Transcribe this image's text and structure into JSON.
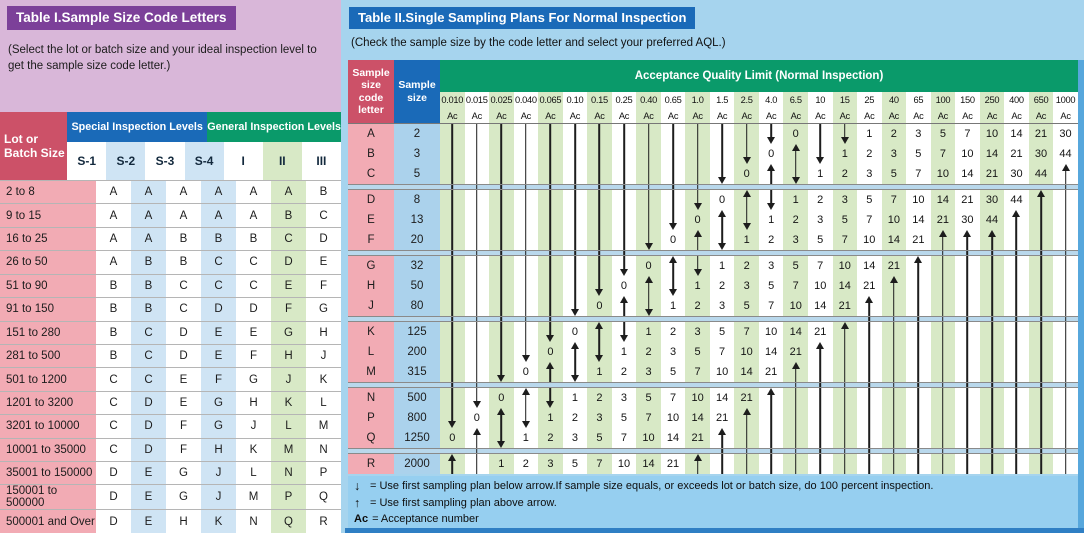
{
  "left_table": {
    "title": "Table I.Sample Size Code Letters",
    "subtitle": "(Select the lot or batch size and your ideal inspection level to get the sample size code letter.)",
    "headers": {
      "lot": "Lot or Batch Size",
      "special": "Special Inspection Levels",
      "general": "General Inspection Levels",
      "sub": [
        "S-1",
        "S-2",
        "S-3",
        "S-4",
        "I",
        "II",
        "III"
      ]
    },
    "rows": [
      [
        "2 to 8",
        "A",
        "A",
        "A",
        "A",
        "A",
        "A",
        "B"
      ],
      [
        "9 to 15",
        "A",
        "A",
        "A",
        "A",
        "A",
        "B",
        "C"
      ],
      [
        "16 to 25",
        "A",
        "A",
        "B",
        "B",
        "B",
        "C",
        "D"
      ],
      [
        "26 to 50",
        "A",
        "B",
        "B",
        "C",
        "C",
        "D",
        "E"
      ],
      [
        "51 to 90",
        "B",
        "B",
        "C",
        "C",
        "C",
        "E",
        "F"
      ],
      [
        "91 to 150",
        "B",
        "B",
        "C",
        "D",
        "D",
        "F",
        "G"
      ],
      [
        "151 to 280",
        "B",
        "C",
        "D",
        "E",
        "E",
        "G",
        "H"
      ],
      [
        "281 to 500",
        "B",
        "C",
        "D",
        "E",
        "F",
        "H",
        "J"
      ],
      [
        "501 to 1200",
        "C",
        "C",
        "E",
        "F",
        "G",
        "J",
        "K"
      ],
      [
        "1201 to 3200",
        "C",
        "D",
        "E",
        "G",
        "H",
        "K",
        "L"
      ],
      [
        "3201 to 10000",
        "C",
        "D",
        "F",
        "G",
        "J",
        "L",
        "M"
      ],
      [
        "10001 to 35000",
        "C",
        "D",
        "F",
        "H",
        "K",
        "M",
        "N"
      ],
      [
        "35001 to 150000",
        "D",
        "E",
        "G",
        "J",
        "L",
        "N",
        "P"
      ],
      [
        "150001 to 500000",
        "D",
        "E",
        "G",
        "J",
        "M",
        "P",
        "Q"
      ],
      [
        "500001 and Over",
        "D",
        "E",
        "H",
        "K",
        "N",
        "Q",
        "R"
      ]
    ]
  },
  "right_table": {
    "title": "Table II.Single Sampling Plans For Normal Inspection",
    "subtitle": "(Check the sample size by the code letter and select your preferred AQL.)",
    "headers": {
      "code_letter": "Sample size code letter",
      "sample_size": "Sample size",
      "aql_title": "Acceptance Quality Limit (Normal Inspection)",
      "ac_label": "Ac"
    },
    "aql_values": [
      "0.010",
      "0.015",
      "0.025",
      "0.040",
      "0.065",
      "0.10",
      "0.15",
      "0.25",
      "0.40",
      "0.65",
      "1.0",
      "1.5",
      "2.5",
      "4.0",
      "6.5",
      "10",
      "15",
      "25",
      "40",
      "65",
      "100",
      "150",
      "250",
      "400",
      "650",
      "1000"
    ],
    "cell_legend": {
      "|": "down-arrow shaft",
      "v": "down-arrow head",
      "^": "up-arrow head",
      "!": "up-arrow shaft"
    },
    "blocks": [
      {
        "rows": [
          {
            "letter": "A",
            "size": "2",
            "cells": [
              "|",
              "|",
              "|",
              "|",
              "|",
              "|",
              "|",
              "|",
              "|",
              "|",
              "|",
              "|",
              "|",
              "v",
              "0",
              "|",
              "v",
              "1",
              "2",
              "3",
              "5",
              "7",
              "10",
              "14",
              "21",
              "30"
            ]
          },
          {
            "letter": "B",
            "size": "3",
            "cells": [
              "|",
              "|",
              "|",
              "|",
              "|",
              "|",
              "|",
              "|",
              "|",
              "|",
              "|",
              "|",
              "v",
              "0",
              "^",
              "v",
              "1",
              "2",
              "3",
              "5",
              "7",
              "10",
              "14",
              "21",
              "30",
              "44"
            ]
          },
          {
            "letter": "C",
            "size": "5",
            "cells": [
              "|",
              "|",
              "|",
              "|",
              "|",
              "|",
              "|",
              "|",
              "|",
              "|",
              "|",
              "v",
              "0",
              "^",
              "v",
              "1",
              "2",
              "3",
              "5",
              "7",
              "10",
              "14",
              "21",
              "30",
              "44",
              "^"
            ]
          }
        ]
      },
      {
        "rows": [
          {
            "letter": "D",
            "size": "8",
            "cells": [
              "|",
              "|",
              "|",
              "|",
              "|",
              "|",
              "|",
              "|",
              "|",
              "|",
              "v",
              "0",
              "^",
              "v",
              "1",
              "2",
              "3",
              "5",
              "7",
              "10",
              "14",
              "21",
              "30",
              "44",
              "^",
              "!"
            ]
          },
          {
            "letter": "E",
            "size": "13",
            "cells": [
              "|",
              "|",
              "|",
              "|",
              "|",
              "|",
              "|",
              "|",
              "|",
              "v",
              "0",
              "^",
              "v",
              "1",
              "2",
              "3",
              "5",
              "7",
              "10",
              "14",
              "21",
              "30",
              "44",
              "^",
              "!",
              "!"
            ]
          },
          {
            "letter": "F",
            "size": "20",
            "cells": [
              "|",
              "|",
              "|",
              "|",
              "|",
              "|",
              "|",
              "|",
              "v",
              "0",
              "^",
              "v",
              "1",
              "2",
              "3",
              "5",
              "7",
              "10",
              "14",
              "21",
              "^",
              "^",
              "^",
              "!",
              "!",
              "!"
            ]
          }
        ]
      },
      {
        "rows": [
          {
            "letter": "G",
            "size": "32",
            "cells": [
              "|",
              "|",
              "|",
              "|",
              "|",
              "|",
              "|",
              "v",
              "0",
              "^",
              "v",
              "1",
              "2",
              "3",
              "5",
              "7",
              "10",
              "14",
              "21",
              "^",
              "!",
              "!",
              "!",
              "!",
              "!",
              "!"
            ]
          },
          {
            "letter": "H",
            "size": "50",
            "cells": [
              "|",
              "|",
              "|",
              "|",
              "|",
              "|",
              "v",
              "0",
              "^",
              "v",
              "1",
              "2",
              "3",
              "5",
              "7",
              "10",
              "14",
              "21",
              "^",
              "!",
              "!",
              "!",
              "!",
              "!",
              "!",
              "!"
            ]
          },
          {
            "letter": "J",
            "size": "80",
            "cells": [
              "|",
              "|",
              "|",
              "|",
              "|",
              "v",
              "0",
              "^",
              "v",
              "1",
              "2",
              "3",
              "5",
              "7",
              "10",
              "14",
              "21",
              "^",
              "!",
              "!",
              "!",
              "!",
              "!",
              "!",
              "!",
              "!"
            ]
          }
        ]
      },
      {
        "rows": [
          {
            "letter": "K",
            "size": "125",
            "cells": [
              "|",
              "|",
              "|",
              "|",
              "v",
              "0",
              "^",
              "v",
              "1",
              "2",
              "3",
              "5",
              "7",
              "10",
              "14",
              "21",
              "^",
              "!",
              "!",
              "!",
              "!",
              "!",
              "!",
              "!",
              "!",
              "!"
            ]
          },
          {
            "letter": "L",
            "size": "200",
            "cells": [
              "|",
              "|",
              "|",
              "v",
              "0",
              "^",
              "v",
              "1",
              "2",
              "3",
              "5",
              "7",
              "10",
              "14",
              "21",
              "^",
              "!",
              "!",
              "!",
              "!",
              "!",
              "!",
              "!",
              "!",
              "!",
              "!"
            ]
          },
          {
            "letter": "M",
            "size": "315",
            "cells": [
              "|",
              "|",
              "v",
              "0",
              "^",
              "v",
              "1",
              "2",
              "3",
              "5",
              "7",
              "10",
              "14",
              "21",
              "^",
              "!",
              "!",
              "!",
              "!",
              "!",
              "!",
              "!",
              "!",
              "!",
              "!",
              "!"
            ]
          }
        ]
      },
      {
        "rows": [
          {
            "letter": "N",
            "size": "500",
            "cells": [
              "|",
              "v",
              "0",
              "^",
              "v",
              "1",
              "2",
              "3",
              "5",
              "7",
              "10",
              "14",
              "21",
              "^",
              "!",
              "!",
              "!",
              "!",
              "!",
              "!",
              "!",
              "!",
              "!",
              "!",
              "!",
              "!"
            ]
          },
          {
            "letter": "P",
            "size": "800",
            "cells": [
              "v",
              "0",
              "^",
              "v",
              "1",
              "2",
              "3",
              "5",
              "7",
              "10",
              "14",
              "21",
              "^",
              "!",
              "!",
              "!",
              "!",
              "!",
              "!",
              "!",
              "!",
              "!",
              "!",
              "!",
              "!",
              "!"
            ]
          },
          {
            "letter": "Q",
            "size": "1250",
            "cells": [
              "0",
              "^",
              "v",
              "1",
              "2",
              "3",
              "5",
              "7",
              "10",
              "14",
              "21",
              "^",
              "!",
              "!",
              "!",
              "!",
              "!",
              "!",
              "!",
              "!",
              "!",
              "!",
              "!",
              "!",
              "!",
              "!"
            ]
          }
        ]
      },
      {
        "rows": [
          {
            "letter": "R",
            "size": "2000",
            "cells": [
              "^",
              "!",
              "1",
              "2",
              "3",
              "5",
              "7",
              "10",
              "14",
              "21",
              "^",
              "!",
              "!",
              "!",
              "!",
              "!",
              "!",
              "!",
              "!",
              "!",
              "!",
              "!",
              "!",
              "!",
              "!",
              "!"
            ]
          }
        ]
      }
    ],
    "gap_shafts": [
      [
        0,
        1,
        2,
        3,
        4,
        5,
        6,
        7,
        8,
        9,
        10,
        25
      ],
      [
        0,
        1,
        2,
        3,
        4,
        5,
        6,
        7,
        20,
        21,
        22,
        23,
        24,
        25
      ],
      [
        0,
        1,
        2,
        3,
        4,
        17,
        18,
        19,
        20,
        21,
        22,
        23,
        24,
        25
      ],
      [
        0,
        1,
        14,
        15,
        16,
        17,
        18,
        19,
        20,
        21,
        22,
        23,
        24,
        25
      ],
      [
        1,
        11,
        12,
        13,
        14,
        15,
        16,
        17,
        18,
        19,
        20,
        21,
        22,
        23,
        24,
        25
      ]
    ],
    "footnotes": [
      {
        "symbol": "↓",
        "text": "= Use first sampling plan below arrow.If sample size equals, or exceeds lot or batch size, do 100 percent inspection."
      },
      {
        "symbol": "↑",
        "text": "= Use first sampling plan above arrow."
      },
      {
        "symbol": "Ac",
        "text": "= Acceptance number"
      }
    ]
  },
  "colors": {
    "purple_title": "#7c4099",
    "lavender": "#d9b7d9",
    "red_header": "#cc5168",
    "pink_cell": "#f2abb4",
    "blue_header": "#1a6ab8",
    "light_blue_cell": "#cfe4f4",
    "green_header": "#0a9a6a",
    "light_green_cell": "#d8e9c6",
    "panel_blue": "#a6d4ee",
    "size_cell_blue": "#abd2ec",
    "gap_blue": "#b9d8ec",
    "notes_blue": "#96cff0",
    "right_strip": "#57a7dc",
    "bottom_strip": "#2f7fc4",
    "arrow": "#1d1d1d"
  }
}
